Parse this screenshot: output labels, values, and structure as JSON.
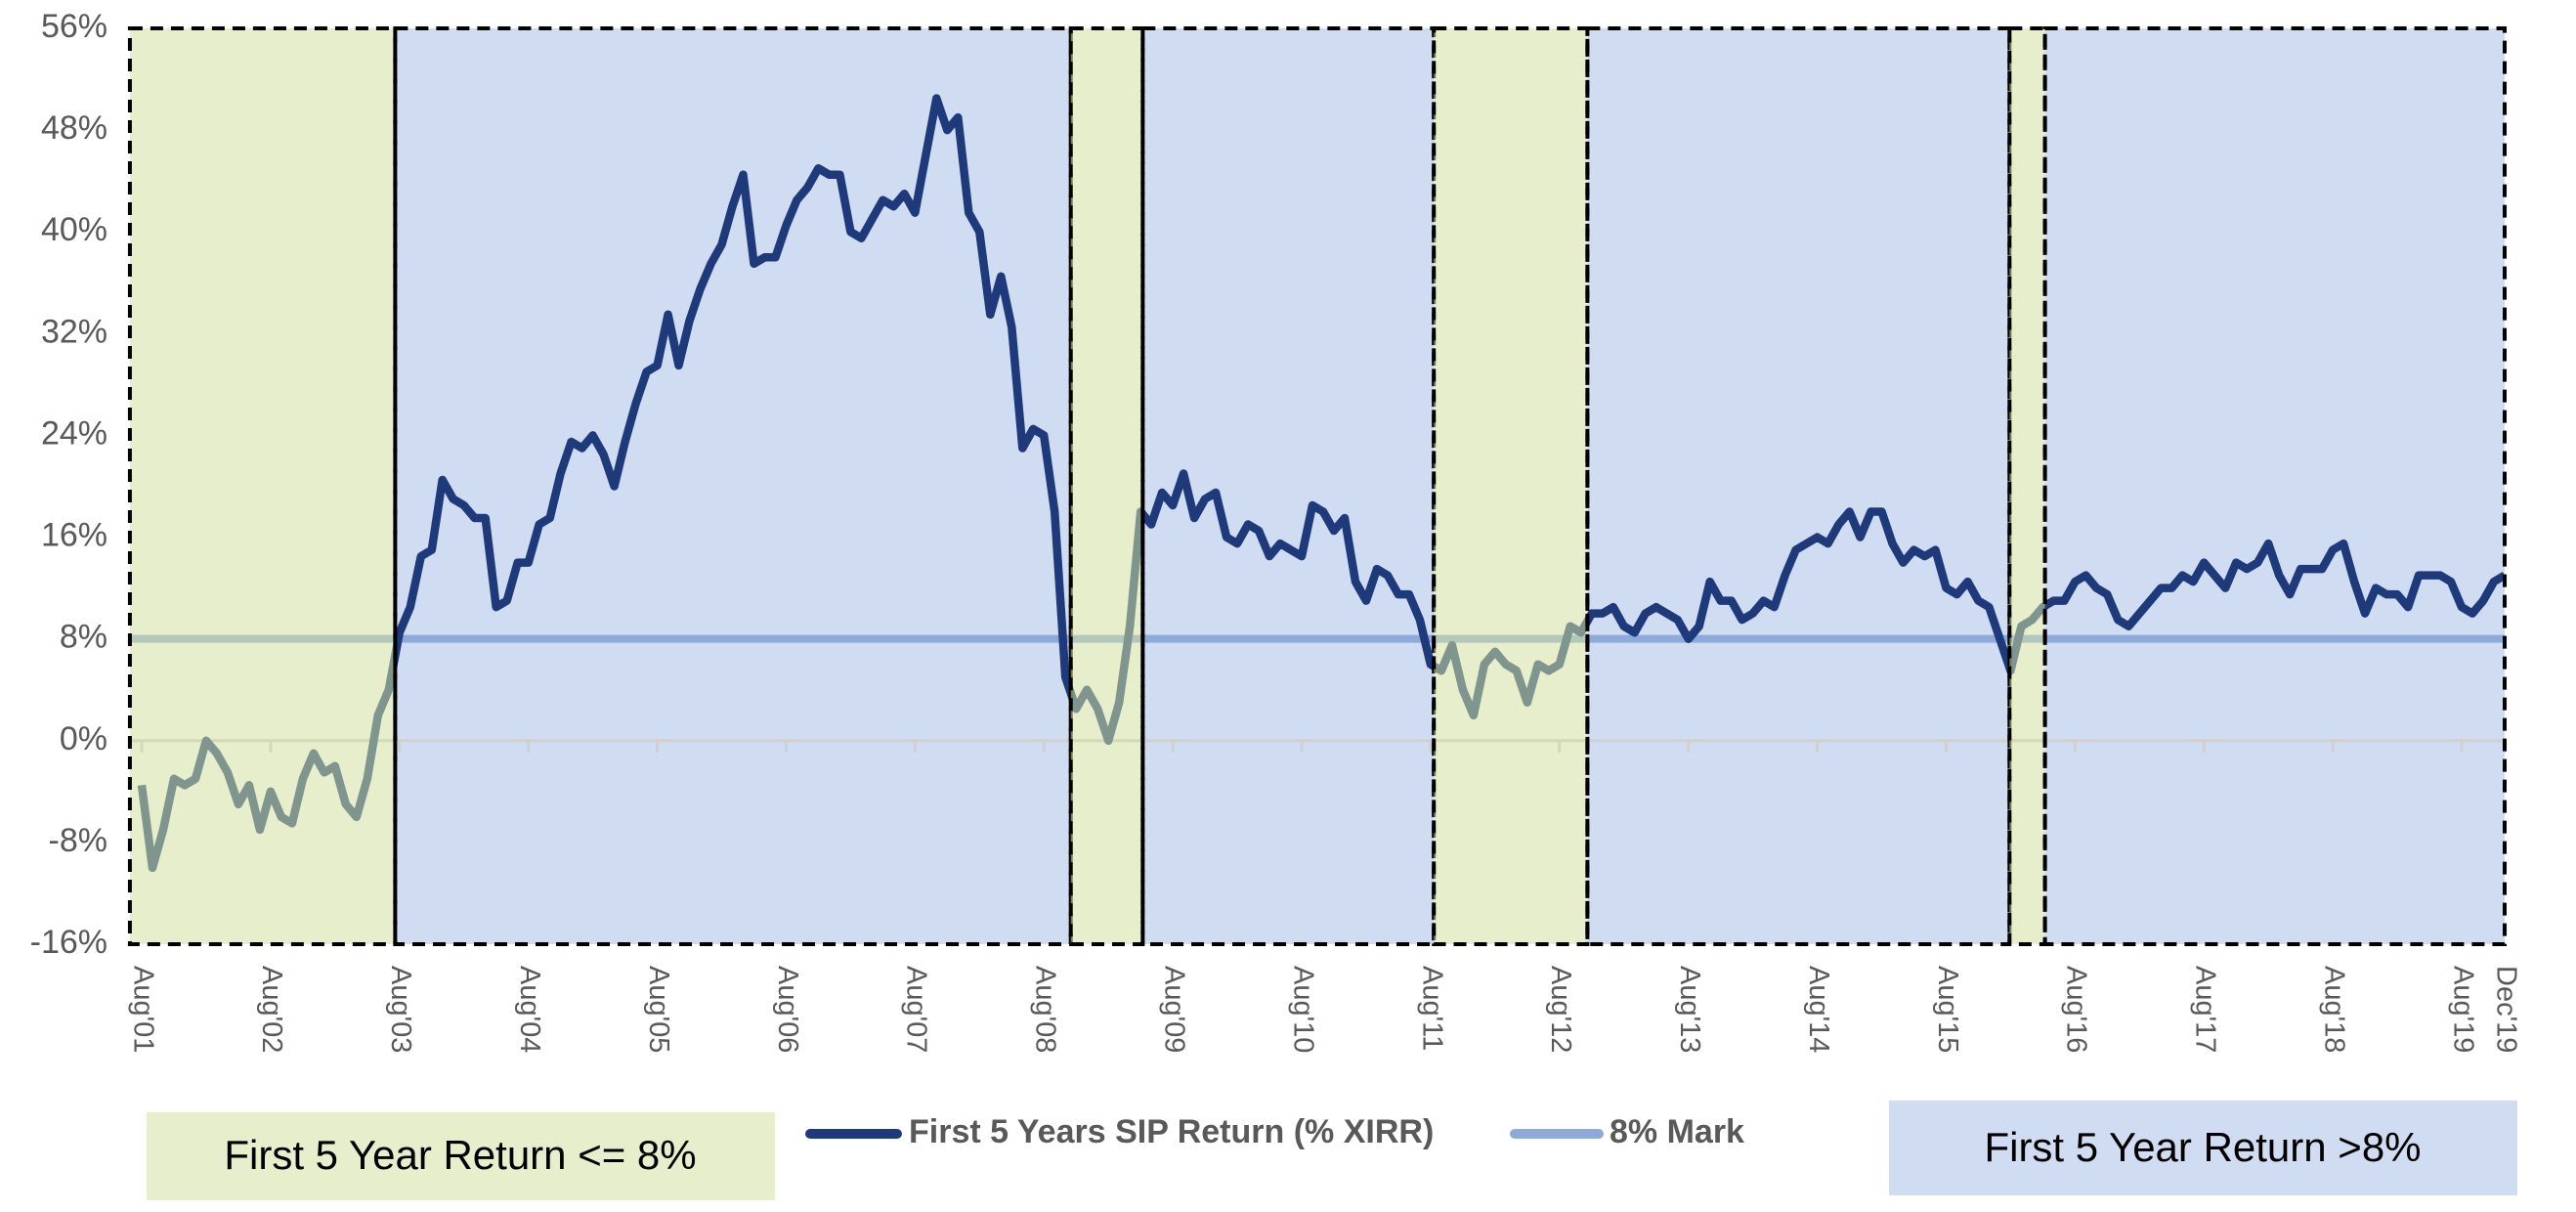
{
  "chart_data": {
    "type": "line",
    "categories": [
      "Aug'01",
      null,
      null,
      null,
      null,
      null,
      null,
      null,
      null,
      null,
      null,
      null,
      "Aug'02",
      null,
      null,
      null,
      null,
      null,
      null,
      null,
      null,
      null,
      null,
      null,
      "Aug'03",
      null,
      null,
      null,
      null,
      null,
      null,
      null,
      null,
      null,
      null,
      null,
      "Aug'04",
      null,
      null,
      null,
      null,
      null,
      null,
      null,
      null,
      null,
      null,
      null,
      "Aug'05",
      null,
      null,
      null,
      null,
      null,
      null,
      null,
      null,
      null,
      null,
      null,
      "Aug'06",
      null,
      null,
      null,
      null,
      null,
      null,
      null,
      null,
      null,
      null,
      null,
      "Aug'07",
      null,
      null,
      null,
      null,
      null,
      null,
      null,
      null,
      null,
      null,
      null,
      "Aug'08",
      null,
      null,
      null,
      null,
      null,
      null,
      null,
      null,
      null,
      null,
      null,
      "Aug'09",
      null,
      null,
      null,
      null,
      null,
      null,
      null,
      null,
      null,
      null,
      null,
      "Aug'10",
      null,
      null,
      null,
      null,
      null,
      null,
      null,
      null,
      null,
      null,
      null,
      "Aug'11",
      null,
      null,
      null,
      null,
      null,
      null,
      null,
      null,
      null,
      null,
      null,
      "Aug'12",
      null,
      null,
      null,
      null,
      null,
      null,
      null,
      null,
      null,
      null,
      null,
      "Aug'13",
      null,
      null,
      null,
      null,
      null,
      null,
      null,
      null,
      null,
      null,
      null,
      "Aug'14",
      null,
      null,
      null,
      null,
      null,
      null,
      null,
      null,
      null,
      null,
      null,
      "Aug'15",
      null,
      null,
      null,
      null,
      null,
      null,
      null,
      null,
      null,
      null,
      null,
      "Aug'16",
      null,
      null,
      null,
      null,
      null,
      null,
      null,
      null,
      null,
      null,
      null,
      "Aug'17",
      null,
      null,
      null,
      null,
      null,
      null,
      null,
      null,
      null,
      null,
      null,
      "Aug'18",
      null,
      null,
      null,
      null,
      null,
      null,
      null,
      null,
      null,
      null,
      null,
      "Aug'19",
      null,
      null,
      null,
      "Dec'19"
    ],
    "series": [
      {
        "name": "First 5 Years SIP Return (% XIRR)",
        "color": "#1f3a7a",
        "values": [
          -3.5,
          -10,
          -7,
          -3,
          -3.5,
          -3,
          0,
          -1,
          -2.5,
          -5,
          -3.5,
          -7,
          -4,
          -6,
          -6.5,
          -3,
          -1,
          -2.5,
          -2,
          -5,
          -6,
          -3,
          2,
          4,
          8.5,
          10.5,
          14.5,
          15,
          20.5,
          19,
          18.5,
          17.5,
          17.5,
          10.5,
          11,
          14,
          14,
          17,
          17.5,
          21,
          23.5,
          23,
          24,
          22.5,
          20,
          23.5,
          26.5,
          29,
          29.5,
          33.5,
          29.5,
          33,
          35.5,
          37.5,
          39,
          42,
          44.5,
          37.5,
          38,
          38,
          40.5,
          42.5,
          43.5,
          45,
          44.5,
          44.5,
          40,
          39.5,
          41,
          42.5,
          42,
          43,
          41.5,
          46,
          50.5,
          48,
          49,
          41.5,
          40,
          33.5,
          36.5,
          32.5,
          23,
          24.5,
          24,
          18,
          5,
          2.5,
          4,
          2.5,
          0,
          3,
          9,
          18,
          17,
          19.5,
          18.5,
          21,
          17.5,
          19,
          19.5,
          16,
          15.5,
          17,
          16.5,
          14.5,
          15.5,
          15,
          14.5,
          18.5,
          18,
          16.5,
          17.5,
          12.5,
          11,
          13.5,
          13,
          11.5,
          11.5,
          9.5,
          6,
          5.5,
          7.5,
          4,
          2,
          6,
          7,
          6,
          5.5,
          3,
          6,
          5.5,
          6,
          9,
          8.5,
          10,
          10,
          10.5,
          9,
          8.5,
          10,
          10.5,
          10,
          9.5,
          8,
          9,
          12.5,
          11,
          11,
          9.5,
          10,
          11,
          10.5,
          13,
          15,
          15.5,
          16,
          15.5,
          17,
          18,
          16,
          18,
          18,
          15.5,
          14,
          15,
          14.5,
          15,
          12,
          11.5,
          12.5,
          11,
          10.5,
          8,
          5.5,
          9,
          9.5,
          10.5,
          11,
          11,
          12.5,
          13,
          12,
          11.5,
          9.5,
          9,
          10,
          11,
          12,
          12,
          13,
          12.5,
          14,
          13,
          12,
          14,
          13.5,
          14,
          15.5,
          13,
          11.5,
          13.5,
          13.5,
          13.5,
          15,
          15.5,
          12.5,
          10,
          12,
          11.5,
          11.5,
          10.5,
          13,
          13,
          13,
          12.5,
          10.5,
          10,
          11,
          12.5,
          13
        ]
      }
    ],
    "reference_line": {
      "name": "8% Mark",
      "value": 8,
      "color": "#8eaadb"
    },
    "ylim": [
      -16,
      56
    ],
    "yticks": [
      {
        "value": -16,
        "label": "-16%"
      },
      {
        "value": -8,
        "label": "-8%"
      },
      {
        "value": 0,
        "label": "0%"
      },
      {
        "value": 8,
        "label": "8%"
      },
      {
        "value": 16,
        "label": "16%"
      },
      {
        "value": 24,
        "label": "24%"
      },
      {
        "value": 32,
        "label": "32%"
      },
      {
        "value": 40,
        "label": "40%"
      },
      {
        "value": 48,
        "label": "48%"
      },
      {
        "value": 56,
        "label": "56%"
      }
    ],
    "period_legend": [
      {
        "label": "First 5 Year Return <= 8%",
        "color": "rgba(210,224,160,0.55)"
      },
      {
        "label": "First 5 Year Return >8%",
        "color": "#d0dcf2"
      }
    ],
    "periods": [
      {
        "from": -1.1,
        "to": 23.6,
        "kind": 0
      },
      {
        "from": 23.6,
        "to": 86.5,
        "kind": 1
      },
      {
        "from": 86.5,
        "to": 93.2,
        "kind": 0
      },
      {
        "from": 93.2,
        "to": 120.3,
        "kind": 1
      },
      {
        "from": 120.3,
        "to": 134.6,
        "kind": 0
      },
      {
        "from": 134.6,
        "to": 173.9,
        "kind": 1
      },
      {
        "from": 173.9,
        "to": 177.2,
        "kind": 0
      },
      {
        "from": 177.2,
        "to": 220,
        "kind": 1
      }
    ]
  }
}
